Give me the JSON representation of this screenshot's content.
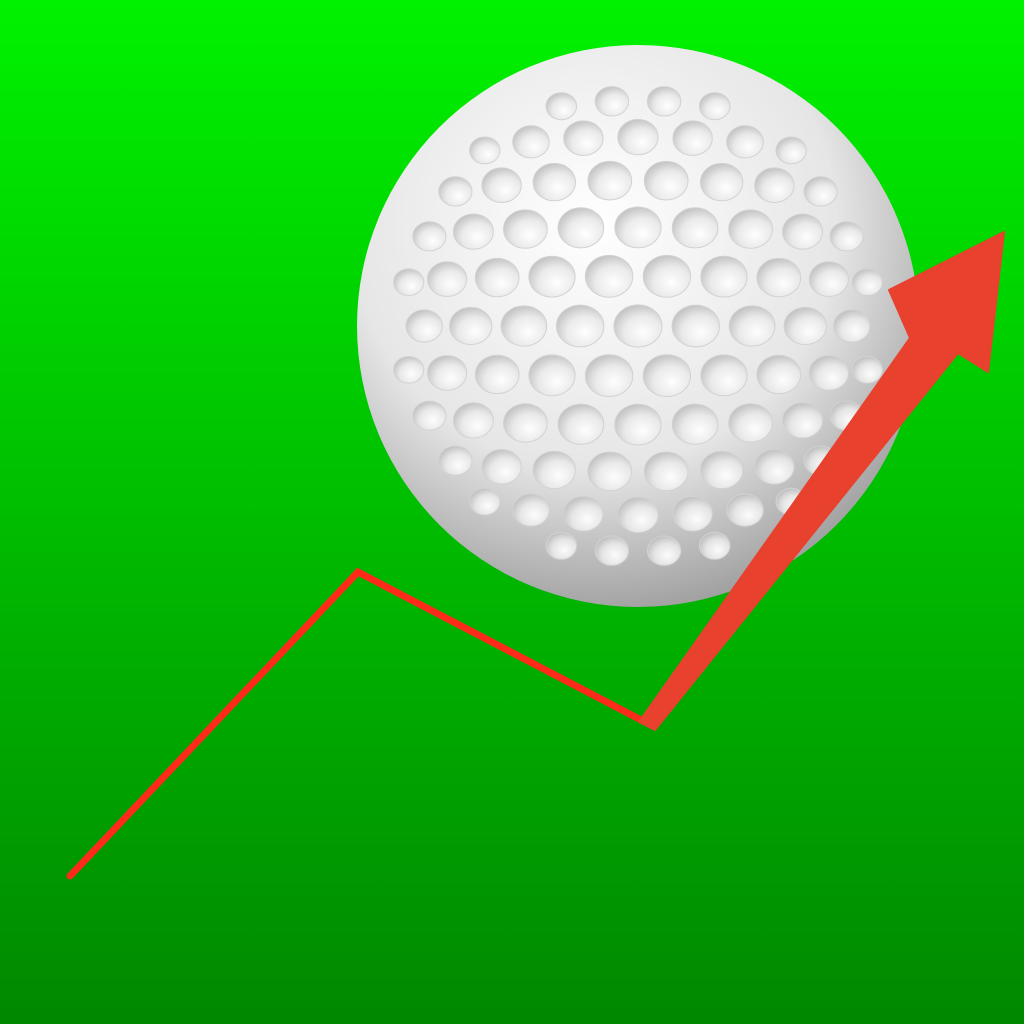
{
  "icon": {
    "subject": "golf-ball-trend-up",
    "colors": {
      "background_top": "#00f200",
      "background_bottom": "#008800",
      "ball_light": "#ffffff",
      "ball_mid": "#e6e6e6",
      "ball_shadow": "#9a9a9a",
      "dimple": "#d2d2d2",
      "trend_line": "#ff2a1a",
      "arrow": "#e8412e"
    }
  }
}
